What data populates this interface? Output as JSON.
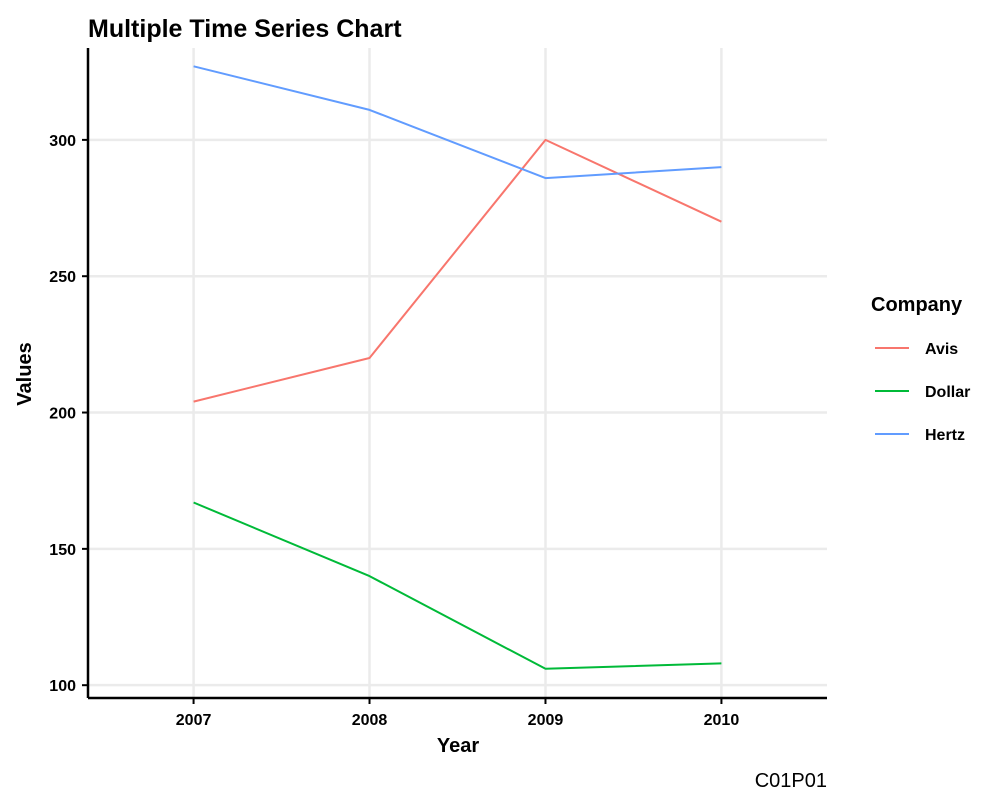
{
  "chart_data": {
    "type": "line",
    "title": "Multiple Time Series Chart",
    "xlabel": "Year",
    "ylabel": "Values",
    "caption": "C01P01",
    "x": [
      2007,
      2008,
      2009,
      2010
    ],
    "xlim": [
      2006.4,
      2010.6
    ],
    "ylim": [
      95.3,
      333.7
    ],
    "yticks": [
      100,
      150,
      200,
      250,
      300
    ],
    "grid": true,
    "legend": {
      "title": "Company",
      "position": "right"
    },
    "series": [
      {
        "name": "Avis",
        "color": "#F8766D",
        "values": [
          204,
          220,
          300,
          270
        ]
      },
      {
        "name": "Dollar",
        "color": "#00BA38",
        "values": [
          167,
          140,
          106,
          108
        ]
      },
      {
        "name": "Hertz",
        "color": "#619CFF",
        "values": [
          327,
          311,
          286,
          290
        ]
      }
    ]
  }
}
